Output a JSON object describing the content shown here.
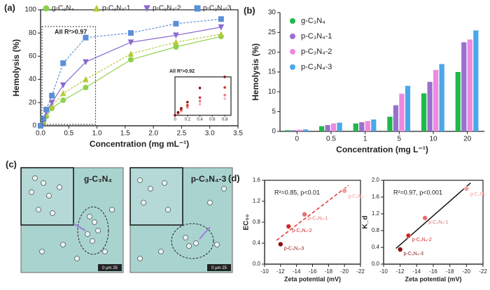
{
  "chart_data": [
    {
      "type": "scatter",
      "panel": "(a)",
      "x": [
        0,
        0.05,
        0.1,
        0.2,
        0.4,
        0.8,
        1.6,
        2.4,
        3.2
      ],
      "series": [
        {
          "name": "g-C₃N₄",
          "color": "#8fd14f",
          "marker": "circle",
          "values": [
            0,
            3,
            8,
            15,
            22,
            33,
            57,
            68,
            77
          ]
        },
        {
          "name": "p-C₃N₄-1",
          "color": "#b5c93a",
          "marker": "triangle-up",
          "values": [
            0,
            4,
            10,
            17,
            28,
            40,
            62,
            72,
            79
          ]
        },
        {
          "name": "p-C₃N₄-2",
          "color": "#8a6ad0",
          "marker": "triangle-down",
          "values": [
            0,
            5,
            12,
            20,
            35,
            55,
            72,
            78,
            85
          ]
        },
        {
          "name": "p-C₃N₄-3",
          "color": "#5b8fd6",
          "marker": "square",
          "values": [
            0,
            6,
            14,
            26,
            54,
            76,
            80,
            88,
            92
          ]
        }
      ],
      "xlim": [
        0,
        3.5
      ],
      "xticks": [
        {
          "value": 0,
          "label": "0.0"
        },
        0.5,
        {
          "value": 1,
          "label": "1.0"
        },
        1.5,
        {
          "value": 2,
          "label": "2.0"
        },
        2.5,
        {
          "value": 3,
          "label": "3.0"
        },
        3.5
      ],
      "ylim": [
        0,
        100
      ],
      "yticks": [
        0,
        20,
        40,
        60,
        80,
        100
      ],
      "xlabel": "Concentration (mg mL⁻¹)",
      "ylabel": "Hemolysis (%)",
      "annotation": "All R²>0.97",
      "inset": {
        "annotation": "All R²>0.92",
        "xlim": [
          0,
          0.9
        ],
        "xticks": [
          0,
          0.2,
          0.4,
          0.6,
          0.8
        ]
      }
    },
    {
      "type": "bar",
      "panel": "(b)",
      "categories": [
        "0",
        "0.5",
        "1",
        "5",
        "10",
        "20"
      ],
      "series": [
        {
          "name": "g-C₃N₄",
          "color": "#1fb84a",
          "values": [
            0.3,
            1.3,
            2.0,
            3.7,
            9.6,
            15.0
          ]
        },
        {
          "name": "p-C₃N₄-1",
          "color": "#9b6fd0",
          "values": [
            0.3,
            1.6,
            2.3,
            6.6,
            12.5,
            22.5
          ]
        },
        {
          "name": "p-C₃N₄-2",
          "color": "#ee88e0",
          "values": [
            0.4,
            2.0,
            2.6,
            9.5,
            15.5,
            23.2
          ]
        },
        {
          "name": "p-C₃N₄-3",
          "color": "#4aa8e8",
          "values": [
            0.5,
            2.2,
            3.0,
            11.5,
            17.0,
            25.5
          ]
        }
      ],
      "ylim": [
        0,
        30
      ],
      "yticks": [
        0,
        5,
        10,
        15,
        20,
        25,
        30
      ],
      "xlabel": "Concentration (mg L⁻¹)",
      "ylabel": "Hemolysis  (%)"
    },
    {
      "type": "scatter",
      "panel": "(d)",
      "x": [
        -20,
        -15,
        -13,
        -12
      ],
      "values": [
        1.4,
        0.95,
        0.72,
        0.38
      ],
      "point_labels": [
        "g-C₃N₄",
        "p-C₃N₄-1",
        "p-C₃N₄-2",
        "p-C₃N₄-3"
      ],
      "colors": [
        "#f3a0a0",
        "#e57070",
        "#cc2a2a",
        "#8a1010"
      ],
      "fit_line": "dashed",
      "fit_color": "#e03030",
      "xlim": [
        -10,
        -22
      ],
      "xticks": [
        -10,
        -12,
        -14,
        -16,
        -18,
        -20,
        -22
      ],
      "ylim": [
        0,
        1.6
      ],
      "yticks": [
        {
          "value": 0,
          "label": "0.0"
        },
        0.4,
        0.8,
        1.2,
        1.6
      ],
      "xlabel": "Zeta potential (mV)",
      "ylabel": "EC₅₀",
      "annotation": "R²=0.85, p<0.01"
    },
    {
      "type": "scatter",
      "x": [
        -20,
        -15,
        -13,
        -12
      ],
      "values": [
        1.8,
        1.1,
        0.68,
        0.35
      ],
      "point_labels": [
        "g-C₃N₄",
        "p-C₃N₄-1",
        "p-C₃N₄-2",
        "p-C₃N₄-3"
      ],
      "colors": [
        "#f3a0a0",
        "#e57070",
        "#cc2a2a",
        "#8a1010"
      ],
      "fit_line": "solid",
      "fit_color": "#111",
      "xlim": [
        -10,
        -22
      ],
      "xticks": [
        -10,
        -12,
        -14,
        -16,
        -18,
        -20,
        -22
      ],
      "ylim": [
        0,
        2
      ],
      "yticks": [
        {
          "value": 0,
          "label": "0.0"
        },
        0.4,
        0.8,
        1.2,
        1.6,
        {
          "value": 2,
          "label": "2.0"
        }
      ],
      "xlabel": "Zeta potential (mV)",
      "ylabel": "K_d",
      "annotation": "R²=0.97, p<0.001"
    }
  ],
  "micrographs": {
    "panel": "(c)",
    "images": [
      {
        "label": "g-C₃N₄",
        "scale": "0   μm   25"
      },
      {
        "label": "p-C₃N₄-3",
        "scale": "0   μm   25"
      }
    ]
  }
}
